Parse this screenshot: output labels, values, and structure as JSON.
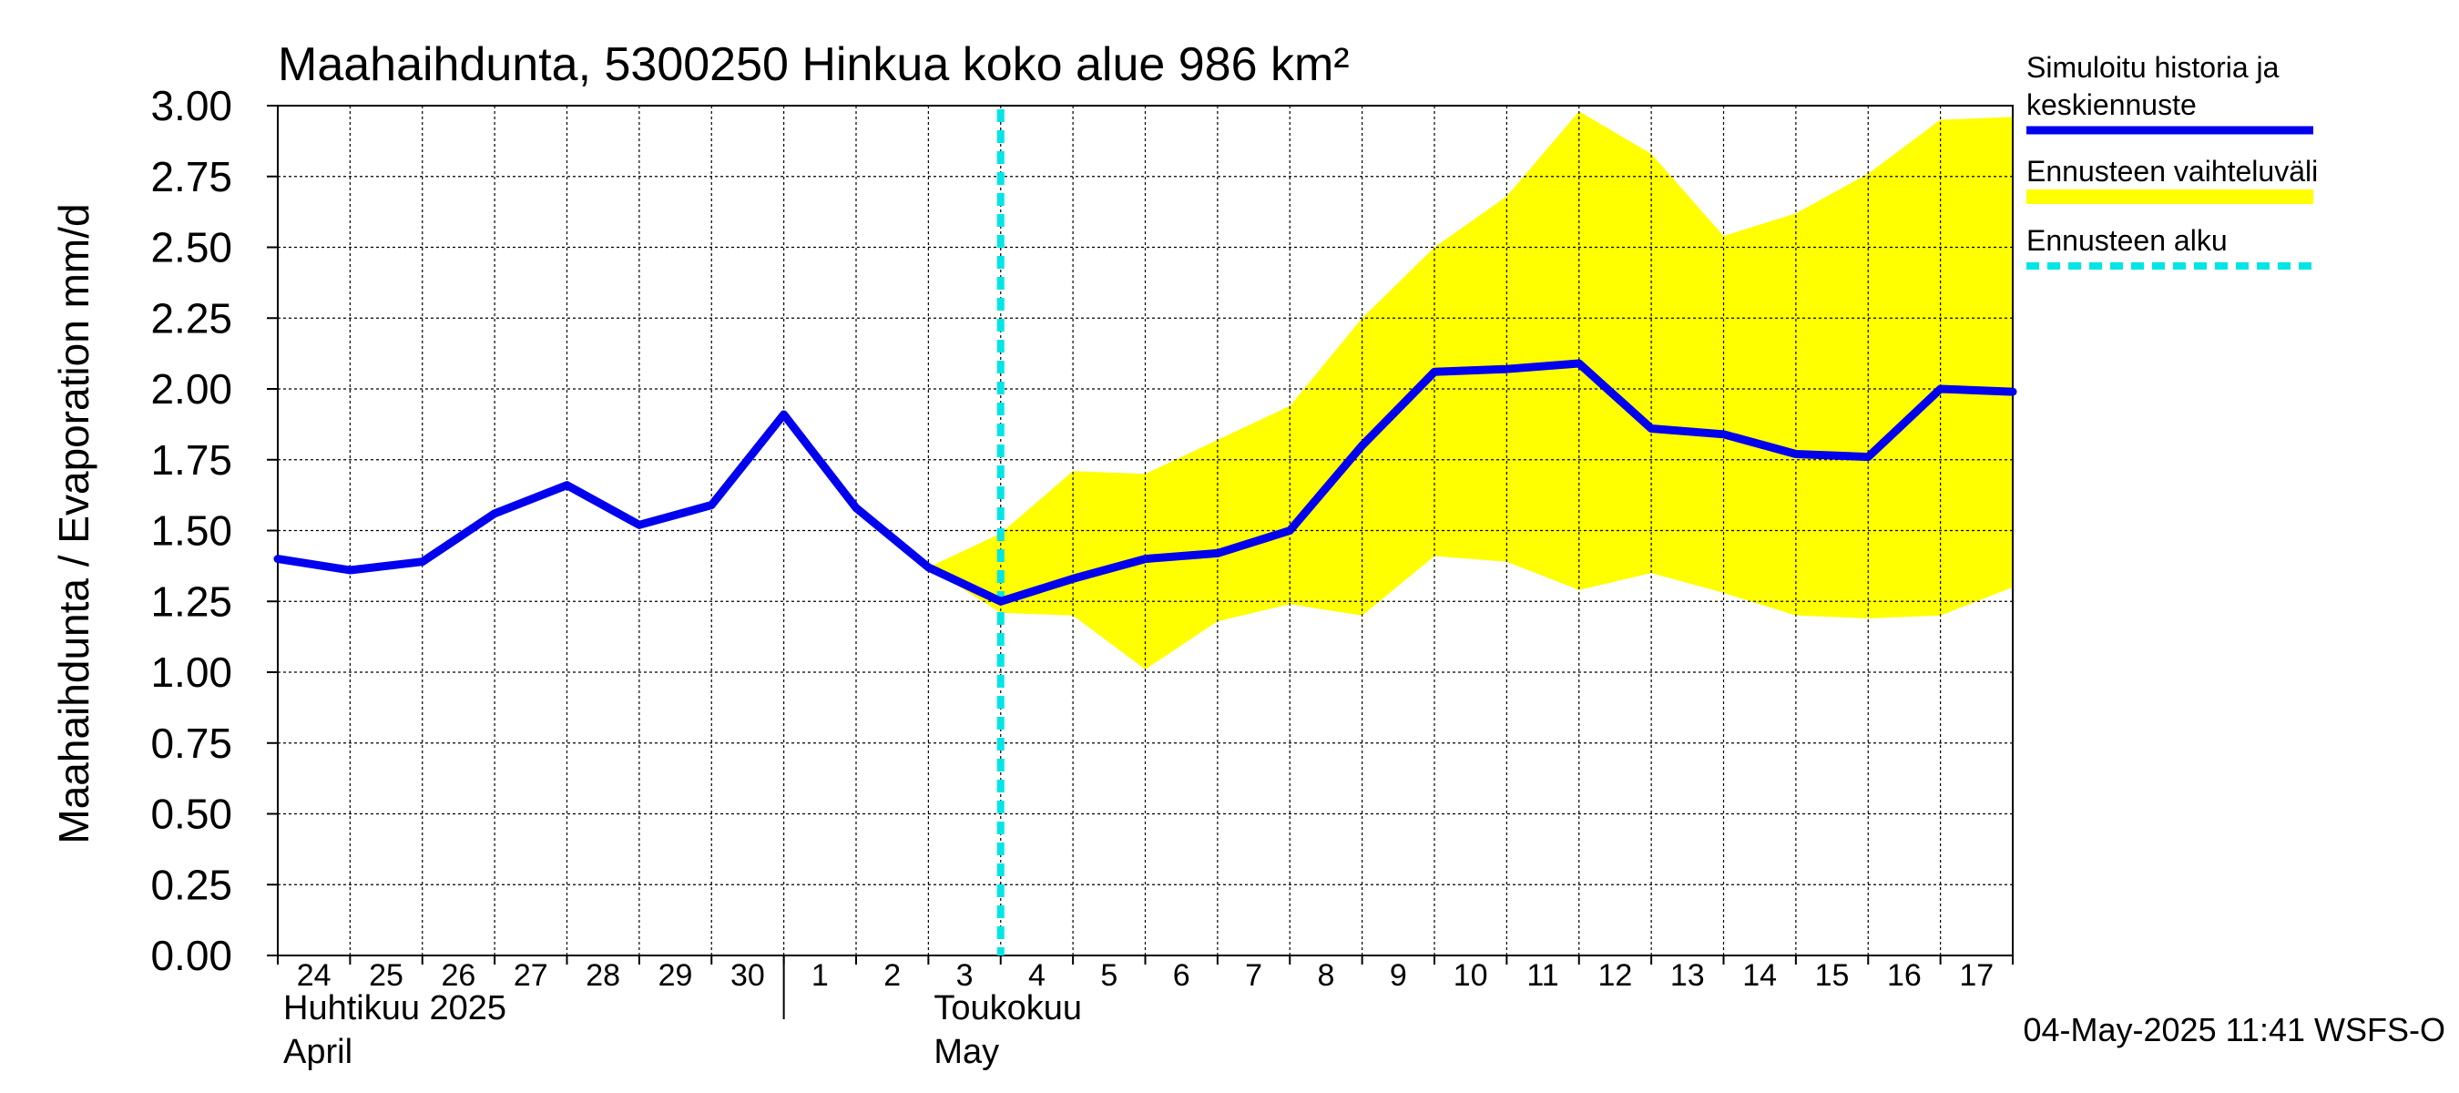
{
  "chart_data": {
    "type": "line",
    "title": "Maahaihdunta, 5300250 Hinkua koko alue 986 km²",
    "ylabel": "Maahaihdunta / Evaporation   mm/d",
    "ylim": [
      0,
      3
    ],
    "y_ticks": [
      "0.00",
      "0.25",
      "0.50",
      "0.75",
      "1.00",
      "1.25",
      "1.50",
      "1.75",
      "2.00",
      "2.25",
      "2.50",
      "2.75",
      "3.00"
    ],
    "x_ticks": [
      "24",
      "25",
      "26",
      "27",
      "28",
      "29",
      "30",
      "1",
      "2",
      "3",
      "4",
      "5",
      "6",
      "7",
      "8",
      "9",
      "10",
      "11",
      "12",
      "13",
      "14",
      "15",
      "16",
      "17"
    ],
    "x_dates": [
      "2025-04-24",
      "2025-04-25",
      "2025-04-26",
      "2025-04-27",
      "2025-04-28",
      "2025-04-29",
      "2025-04-30",
      "2025-05-01",
      "2025-05-02",
      "2025-05-03",
      "2025-05-04",
      "2025-05-05",
      "2025-05-06",
      "2025-05-07",
      "2025-05-08",
      "2025-05-09",
      "2025-05-10",
      "2025-05-11",
      "2025-05-12",
      "2025-05-13",
      "2025-05-14",
      "2025-05-15",
      "2025-05-16",
      "2025-05-17",
      "2025-05-18"
    ],
    "month_labels": [
      {
        "line1": "Huhtikuu  2025",
        "line2": "April",
        "start_date": "2025-04-24"
      },
      {
        "line1": "Toukokuu",
        "line2": "May",
        "start_date": "2025-05-03"
      }
    ],
    "month_boundary_date": "2025-05-01",
    "forecast_start_date": "2025-05-04",
    "grid": true,
    "legend_position": "right",
    "series": [
      {
        "name": "Simuloitu historia ja keskiennuste",
        "kind": "line",
        "color": "#0000ee",
        "x": [
          "2025-04-24",
          "2025-04-25",
          "2025-04-26",
          "2025-04-27",
          "2025-04-28",
          "2025-04-29",
          "2025-04-30",
          "2025-05-01",
          "2025-05-02",
          "2025-05-03",
          "2025-05-04",
          "2025-05-05",
          "2025-05-06",
          "2025-05-07",
          "2025-05-08",
          "2025-05-09",
          "2025-05-10",
          "2025-05-11",
          "2025-05-12",
          "2025-05-13",
          "2025-05-14",
          "2025-05-15",
          "2025-05-16",
          "2025-05-17",
          "2025-05-18"
        ],
        "values": [
          1.4,
          1.36,
          1.39,
          1.56,
          1.66,
          1.52,
          1.59,
          1.91,
          1.58,
          1.37,
          1.25,
          1.33,
          1.4,
          1.42,
          1.5,
          1.8,
          2.06,
          2.07,
          2.09,
          1.86,
          1.84,
          1.77,
          1.76,
          2.0,
          1.99
        ]
      },
      {
        "name": "Ennusteen vaihteluväli",
        "kind": "band",
        "color": "#ffff00",
        "x": [
          "2025-05-03",
          "2025-05-04",
          "2025-05-05",
          "2025-05-06",
          "2025-05-07",
          "2025-05-08",
          "2025-05-09",
          "2025-05-10",
          "2025-05-11",
          "2025-05-12",
          "2025-05-13",
          "2025-05-14",
          "2025-05-15",
          "2025-05-16",
          "2025-05-17",
          "2025-05-18"
        ],
        "upper": [
          1.37,
          1.49,
          1.71,
          1.7,
          1.82,
          1.94,
          2.25,
          2.5,
          2.68,
          2.98,
          2.83,
          2.54,
          2.62,
          2.76,
          2.95,
          2.96
        ],
        "lower": [
          1.37,
          1.21,
          1.2,
          1.01,
          1.18,
          1.24,
          1.2,
          1.41,
          1.39,
          1.29,
          1.35,
          1.28,
          1.2,
          1.19,
          1.2,
          1.3
        ]
      },
      {
        "name": "Ennusteen alku",
        "kind": "vline",
        "color": "#00e5e5",
        "x": "2025-05-04"
      }
    ],
    "timestamp": "04-May-2025 11:41 WSFS-O"
  }
}
